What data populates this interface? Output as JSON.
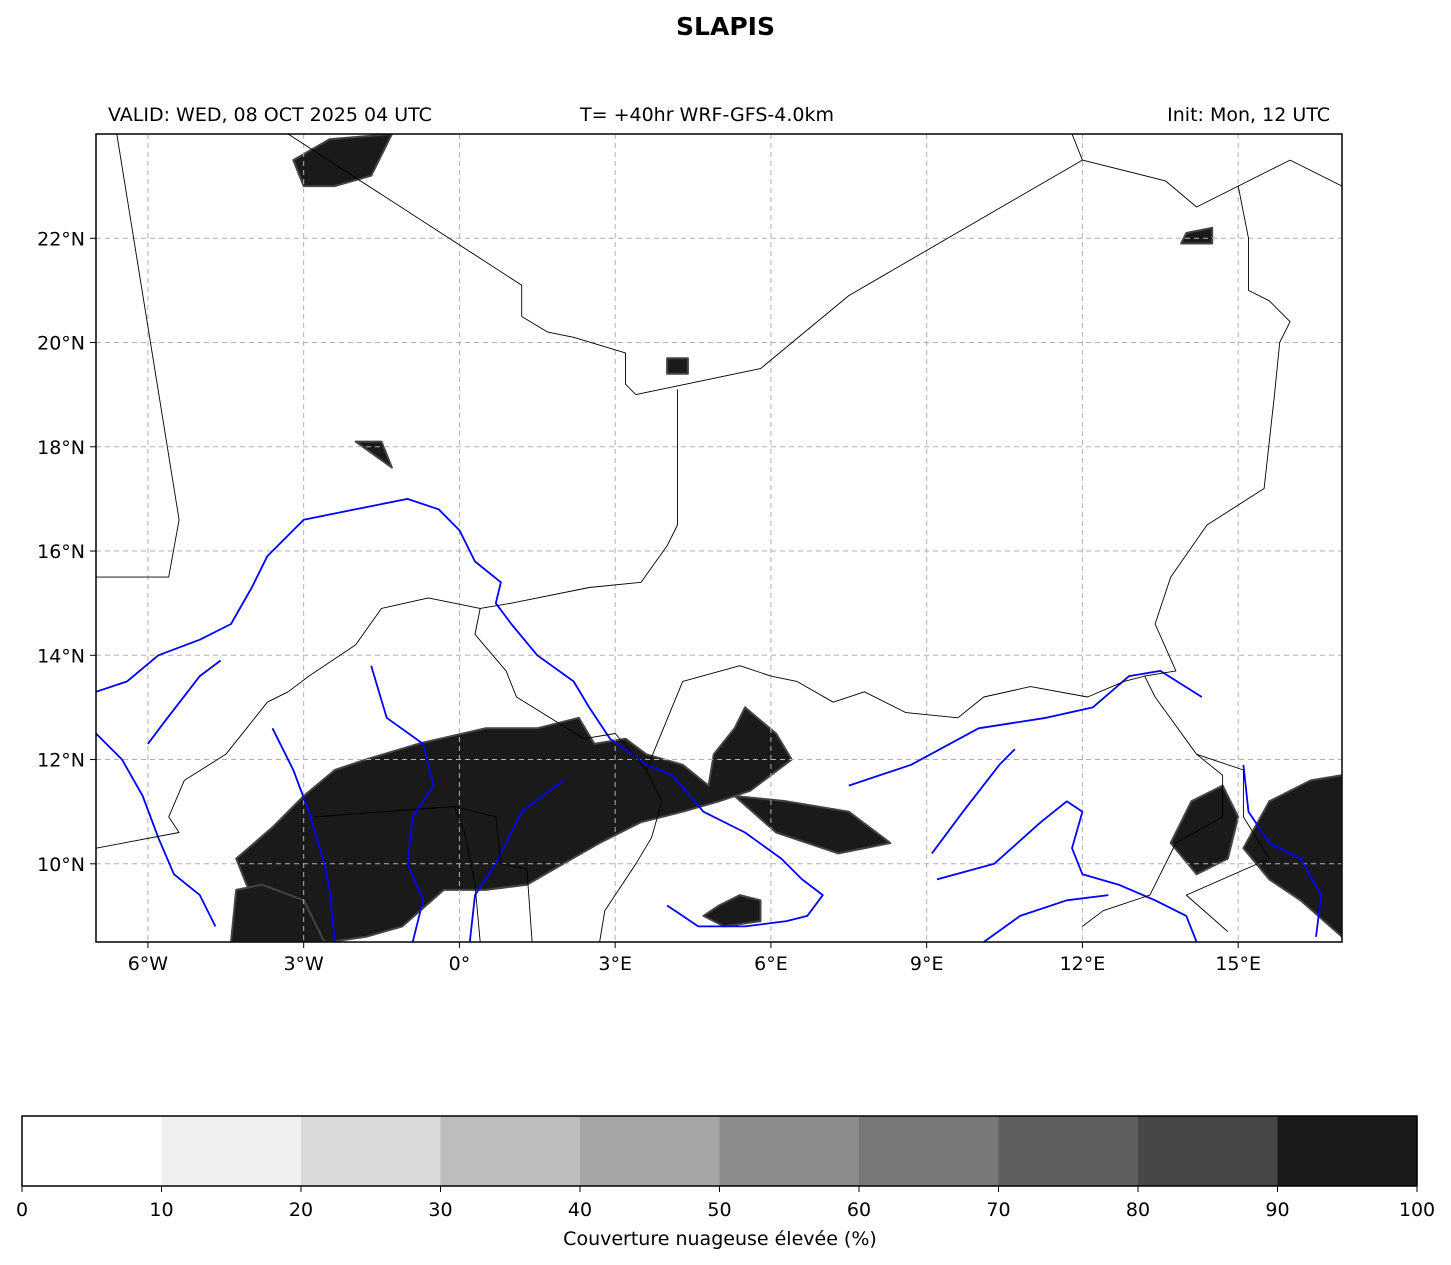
{
  "title": "SLAPIS",
  "header": {
    "valid": "VALID: WED, 08 OCT 2025 04 UTC",
    "lead": "T= +40hr WRF-GFS-4.0km",
    "init": "Init: Mon, 12 UTC"
  },
  "map": {
    "extent": {
      "lon_min": -7,
      "lon_max": 17,
      "lat_min": 8.5,
      "lat_max": 24
    },
    "lon_ticks": [
      {
        "value": -6,
        "label": "6°W"
      },
      {
        "value": -3,
        "label": "3°W"
      },
      {
        "value": 0,
        "label": "0°"
      },
      {
        "value": 3,
        "label": "3°E"
      },
      {
        "value": 6,
        "label": "6°E"
      },
      {
        "value": 9,
        "label": "9°E"
      },
      {
        "value": 12,
        "label": "12°E"
      },
      {
        "value": 15,
        "label": "15°E"
      }
    ],
    "lat_ticks": [
      {
        "value": 10,
        "label": "10°N"
      },
      {
        "value": 12,
        "label": "12°N"
      },
      {
        "value": 14,
        "label": "14°N"
      },
      {
        "value": 16,
        "label": "16°N"
      },
      {
        "value": 18,
        "label": "18°N"
      },
      {
        "value": 20,
        "label": "20°N"
      },
      {
        "value": 22,
        "label": "22°N"
      }
    ],
    "grid": true,
    "colors": {
      "border": "#000000",
      "river": "#0000ff",
      "cloud": "#1a1a1a",
      "grid": "#b0b0b0"
    },
    "borders": [
      [
        [
          -6.6,
          24
        ],
        [
          -5.4,
          16.6
        ],
        [
          -5.6,
          15.5
        ],
        [
          -7,
          15.5
        ]
      ],
      [
        [
          -3.3,
          24
        ],
        [
          1.2,
          21.1
        ],
        [
          1.2,
          20.5
        ],
        [
          1.7,
          20.2
        ],
        [
          2.2,
          20.1
        ],
        [
          3.2,
          19.8
        ],
        [
          3.2,
          19.2
        ],
        [
          3.4,
          19.0
        ],
        [
          5.8,
          19.5
        ],
        [
          7.5,
          20.9
        ],
        [
          12.0,
          23.5
        ],
        [
          13.6,
          23.1
        ],
        [
          14.2,
          22.6
        ],
        [
          15.0,
          23.0
        ],
        [
          16.0,
          23.5
        ],
        [
          17,
          23.0
        ]
      ],
      [
        [
          11.8,
          24
        ],
        [
          12.0,
          23.5
        ]
      ],
      [
        [
          15.0,
          23.0
        ],
        [
          15.2,
          22.0
        ],
        [
          15.2,
          21.0
        ],
        [
          15.6,
          20.8
        ],
        [
          16.0,
          20.4
        ],
        [
          15.8,
          20.0
        ],
        [
          15.7,
          19.0
        ],
        [
          15.5,
          17.2
        ],
        [
          14.4,
          16.5
        ],
        [
          13.7,
          15.5
        ],
        [
          13.4,
          14.6
        ],
        [
          13.8,
          13.7
        ],
        [
          13.2,
          13.6
        ],
        [
          13.4,
          13.2
        ]
      ],
      [
        [
          4.2,
          19.1
        ],
        [
          4.2,
          16.5
        ],
        [
          4.0,
          16.1
        ],
        [
          3.5,
          15.4
        ],
        [
          2.5,
          15.3
        ],
        [
          1.0,
          15.0
        ],
        [
          0.4,
          14.9
        ],
        [
          -0.6,
          15.1
        ],
        [
          -1.5,
          14.9
        ],
        [
          -2.0,
          14.2
        ],
        [
          -2.9,
          13.6
        ],
        [
          -3.3,
          13.3
        ],
        [
          -3.7,
          13.1
        ],
        [
          -4.1,
          12.6
        ],
        [
          -4.5,
          12.1
        ],
        [
          -5.3,
          11.6
        ],
        [
          -5.6,
          10.9
        ],
        [
          -5.4,
          10.6
        ],
        [
          -7,
          10.3
        ]
      ],
      [
        [
          0.4,
          14.9
        ],
        [
          0.3,
          14.4
        ],
        [
          0.9,
          13.7
        ],
        [
          1.1,
          13.2
        ],
        [
          2.4,
          12.4
        ],
        [
          3.0,
          12.5
        ],
        [
          3.6,
          11.8
        ],
        [
          3.9,
          11.2
        ],
        [
          3.7,
          10.5
        ],
        [
          3.4,
          10.0
        ],
        [
          2.8,
          9.1
        ],
        [
          2.7,
          8.5
        ]
      ],
      [
        [
          3.6,
          11.8
        ],
        [
          4.3,
          13.5
        ],
        [
          5.4,
          13.8
        ],
        [
          6.0,
          13.6
        ],
        [
          6.5,
          13.5
        ],
        [
          7.2,
          13.1
        ],
        [
          7.8,
          13.3
        ],
        [
          8.6,
          12.9
        ],
        [
          9.6,
          12.8
        ],
        [
          10.1,
          13.2
        ],
        [
          11.0,
          13.4
        ],
        [
          12.1,
          13.2
        ],
        [
          12.8,
          13.5
        ],
        [
          13.2,
          13.6
        ]
      ],
      [
        [
          13.4,
          13.2
        ],
        [
          14.2,
          12.1
        ],
        [
          14.7,
          11.7
        ],
        [
          14.7,
          10.9
        ],
        [
          13.8,
          10.4
        ],
        [
          13.3,
          9.4
        ],
        [
          12.4,
          9.1
        ],
        [
          12.0,
          8.8
        ]
      ],
      [
        [
          14.2,
          12.1
        ],
        [
          15.1,
          11.8
        ],
        [
          15.1,
          10.9
        ],
        [
          15.6,
          10.1
        ],
        [
          14.0,
          9.4
        ],
        [
          14.8,
          8.7
        ]
      ],
      [
        [
          -0.1,
          11.1
        ],
        [
          0.7,
          10.9
        ],
        [
          0.8,
          10.0
        ],
        [
          1.3,
          9.9
        ],
        [
          1.4,
          8.5
        ]
      ],
      [
        [
          -2.8,
          10.9
        ],
        [
          -0.1,
          11.1
        ],
        [
          0.1,
          10.6
        ],
        [
          0.3,
          9.6
        ],
        [
          0.4,
          8.5
        ]
      ]
    ],
    "rivers": [
      [
        [
          -7,
          13.3
        ],
        [
          -6.4,
          13.5
        ],
        [
          -5.8,
          14.0
        ],
        [
          -5.0,
          14.3
        ],
        [
          -4.4,
          14.6
        ],
        [
          -4.0,
          15.3
        ],
        [
          -3.7,
          15.9
        ],
        [
          -3.0,
          16.6
        ],
        [
          -2.0,
          16.8
        ],
        [
          -1.0,
          17.0
        ],
        [
          -0.4,
          16.8
        ],
        [
          0.0,
          16.4
        ],
        [
          0.3,
          15.8
        ],
        [
          0.8,
          15.4
        ],
        [
          0.7,
          15.0
        ],
        [
          1.0,
          14.6
        ],
        [
          1.5,
          14.0
        ],
        [
          2.2,
          13.5
        ],
        [
          2.5,
          13.0
        ],
        [
          2.9,
          12.4
        ],
        [
          3.6,
          11.9
        ],
        [
          4.1,
          11.7
        ],
        [
          4.7,
          11.0
        ],
        [
          5.5,
          10.6
        ],
        [
          6.2,
          10.1
        ],
        [
          6.6,
          9.7
        ],
        [
          7.0,
          9.4
        ],
        [
          6.7,
          9.0
        ],
        [
          6.3,
          8.9
        ],
        [
          5.5,
          8.8
        ],
        [
          4.6,
          8.8
        ],
        [
          4.3,
          9.0
        ],
        [
          4.0,
          9.2
        ]
      ],
      [
        [
          -6.0,
          12.3
        ],
        [
          -5.7,
          12.7
        ],
        [
          -5.0,
          13.6
        ],
        [
          -4.6,
          13.9
        ]
      ],
      [
        [
          -7,
          12.5
        ],
        [
          -6.5,
          12.0
        ],
        [
          -6.1,
          11.3
        ],
        [
          -5.8,
          10.5
        ],
        [
          -5.5,
          9.8
        ],
        [
          -5.0,
          9.4
        ],
        [
          -4.7,
          8.8
        ]
      ],
      [
        [
          -3.6,
          12.6
        ],
        [
          -3.2,
          11.8
        ],
        [
          -2.9,
          11.0
        ],
        [
          -2.6,
          10.0
        ],
        [
          -2.5,
          9.5
        ],
        [
          -2.4,
          8.5
        ]
      ],
      [
        [
          -1.7,
          13.8
        ],
        [
          -1.4,
          12.8
        ],
        [
          -0.7,
          12.3
        ],
        [
          -0.5,
          11.5
        ],
        [
          -0.9,
          10.9
        ],
        [
          -1.0,
          10.0
        ],
        [
          -0.7,
          9.3
        ],
        [
          -0.9,
          8.5
        ]
      ],
      [
        [
          2.0,
          11.6
        ],
        [
          1.2,
          11.0
        ],
        [
          0.7,
          10.0
        ],
        [
          0.3,
          9.4
        ],
        [
          0.2,
          8.5
        ]
      ],
      [
        [
          7.5,
          11.5
        ],
        [
          8.7,
          11.9
        ],
        [
          10.0,
          12.6
        ],
        [
          11.3,
          12.8
        ],
        [
          12.2,
          13.0
        ],
        [
          12.9,
          13.6
        ],
        [
          13.5,
          13.7
        ],
        [
          14.3,
          13.2
        ]
      ],
      [
        [
          9.1,
          10.2
        ],
        [
          9.7,
          11.0
        ],
        [
          10.4,
          11.9
        ],
        [
          10.7,
          12.2
        ]
      ],
      [
        [
          9.2,
          9.7
        ],
        [
          10.3,
          10.0
        ],
        [
          11.2,
          10.8
        ],
        [
          11.7,
          11.2
        ],
        [
          12.0,
          11.0
        ],
        [
          11.8,
          10.3
        ],
        [
          12.0,
          9.8
        ],
        [
          12.7,
          9.6
        ],
        [
          13.4,
          9.3
        ],
        [
          14.0,
          9.0
        ],
        [
          14.2,
          8.5
        ]
      ],
      [
        [
          10.1,
          8.5
        ],
        [
          10.8,
          9.0
        ],
        [
          11.7,
          9.3
        ],
        [
          12.5,
          9.4
        ]
      ],
      [
        [
          15.1,
          11.9
        ],
        [
          15.2,
          11.0
        ],
        [
          15.6,
          10.4
        ],
        [
          16.2,
          10.1
        ],
        [
          16.6,
          9.4
        ],
        [
          16.5,
          8.6
        ]
      ]
    ],
    "cloud_regions": [
      [
        [
          -0.8,
          12.3
        ],
        [
          0.5,
          12.6
        ],
        [
          1.5,
          12.6
        ],
        [
          2.3,
          12.8
        ],
        [
          2.6,
          12.3
        ],
        [
          3.2,
          12.4
        ],
        [
          3.6,
          12.1
        ],
        [
          4.3,
          11.9
        ],
        [
          4.8,
          11.5
        ],
        [
          4.9,
          12.1
        ],
        [
          5.3,
          12.6
        ],
        [
          5.5,
          13.0
        ],
        [
          6.1,
          12.5
        ],
        [
          6.4,
          12.0
        ],
        [
          6.0,
          11.7
        ],
        [
          5.6,
          11.4
        ],
        [
          5.0,
          11.2
        ],
        [
          4.3,
          11.0
        ],
        [
          3.5,
          10.8
        ],
        [
          2.7,
          10.4
        ],
        [
          2.0,
          10.0
        ],
        [
          1.3,
          9.6
        ],
        [
          0.5,
          9.5
        ],
        [
          -0.3,
          9.5
        ],
        [
          -1.1,
          8.8
        ],
        [
          -1.8,
          8.6
        ],
        [
          -2.5,
          8.5
        ],
        [
          -3.3,
          8.6
        ],
        [
          -3.8,
          9.0
        ],
        [
          -4.1,
          9.6
        ],
        [
          -4.3,
          10.1
        ],
        [
          -3.6,
          10.7
        ],
        [
          -3.0,
          11.3
        ],
        [
          -2.4,
          11.8
        ],
        [
          -1.8,
          12.0
        ]
      ],
      [
        [
          -4.3,
          9.5
        ],
        [
          -3.8,
          9.6
        ],
        [
          -3.0,
          9.3
        ],
        [
          -2.7,
          8.7
        ],
        [
          -2.6,
          8.5
        ],
        [
          -4.4,
          8.5
        ]
      ],
      [
        [
          14.1,
          11.2
        ],
        [
          14.7,
          11.5
        ],
        [
          15.0,
          10.9
        ],
        [
          14.8,
          10.1
        ],
        [
          14.2,
          9.8
        ],
        [
          13.7,
          10.4
        ]
      ],
      [
        [
          15.6,
          11.2
        ],
        [
          16.4,
          11.6
        ],
        [
          17.0,
          11.7
        ],
        [
          17.0,
          8.6
        ],
        [
          16.2,
          9.3
        ],
        [
          15.6,
          9.7
        ],
        [
          15.1,
          10.3
        ]
      ],
      [
        [
          5.3,
          11.3
        ],
        [
          6.3,
          11.2
        ],
        [
          7.5,
          11.0
        ],
        [
          8.3,
          10.4
        ],
        [
          7.3,
          10.2
        ],
        [
          6.1,
          10.6
        ]
      ],
      [
        [
          5.0,
          9.2
        ],
        [
          5.4,
          9.4
        ],
        [
          5.8,
          9.3
        ],
        [
          5.8,
          8.9
        ],
        [
          5.1,
          8.8
        ],
        [
          4.7,
          9.0
        ]
      ],
      [
        [
          -3.2,
          23.5
        ],
        [
          -2.5,
          23.9
        ],
        [
          -1.3,
          24.0
        ],
        [
          -1.7,
          23.2
        ],
        [
          -2.4,
          23.0
        ],
        [
          -3.0,
          23.0
        ]
      ],
      [
        [
          4.0,
          19.7
        ],
        [
          4.4,
          19.7
        ],
        [
          4.4,
          19.4
        ],
        [
          4.0,
          19.4
        ]
      ],
      [
        [
          14.0,
          22.1
        ],
        [
          14.5,
          22.2
        ],
        [
          14.5,
          21.9
        ],
        [
          13.9,
          21.9
        ]
      ],
      [
        [
          -2.0,
          18.1
        ],
        [
          -1.5,
          18.1
        ],
        [
          -1.3,
          17.6
        ],
        0
      ]
    ]
  },
  "colorbar": {
    "label": "Couverture nuageuse élevée (%)",
    "ticks": [
      "0",
      "10",
      "20",
      "30",
      "40",
      "50",
      "60",
      "70",
      "80",
      "90",
      "100"
    ],
    "colors": [
      "#ffffff",
      "#f0f0f0",
      "#d9d9d9",
      "#bdbdbd",
      "#a6a6a6",
      "#8c8c8c",
      "#787878",
      "#5f5f5f",
      "#474747",
      "#1a1a1a"
    ]
  }
}
